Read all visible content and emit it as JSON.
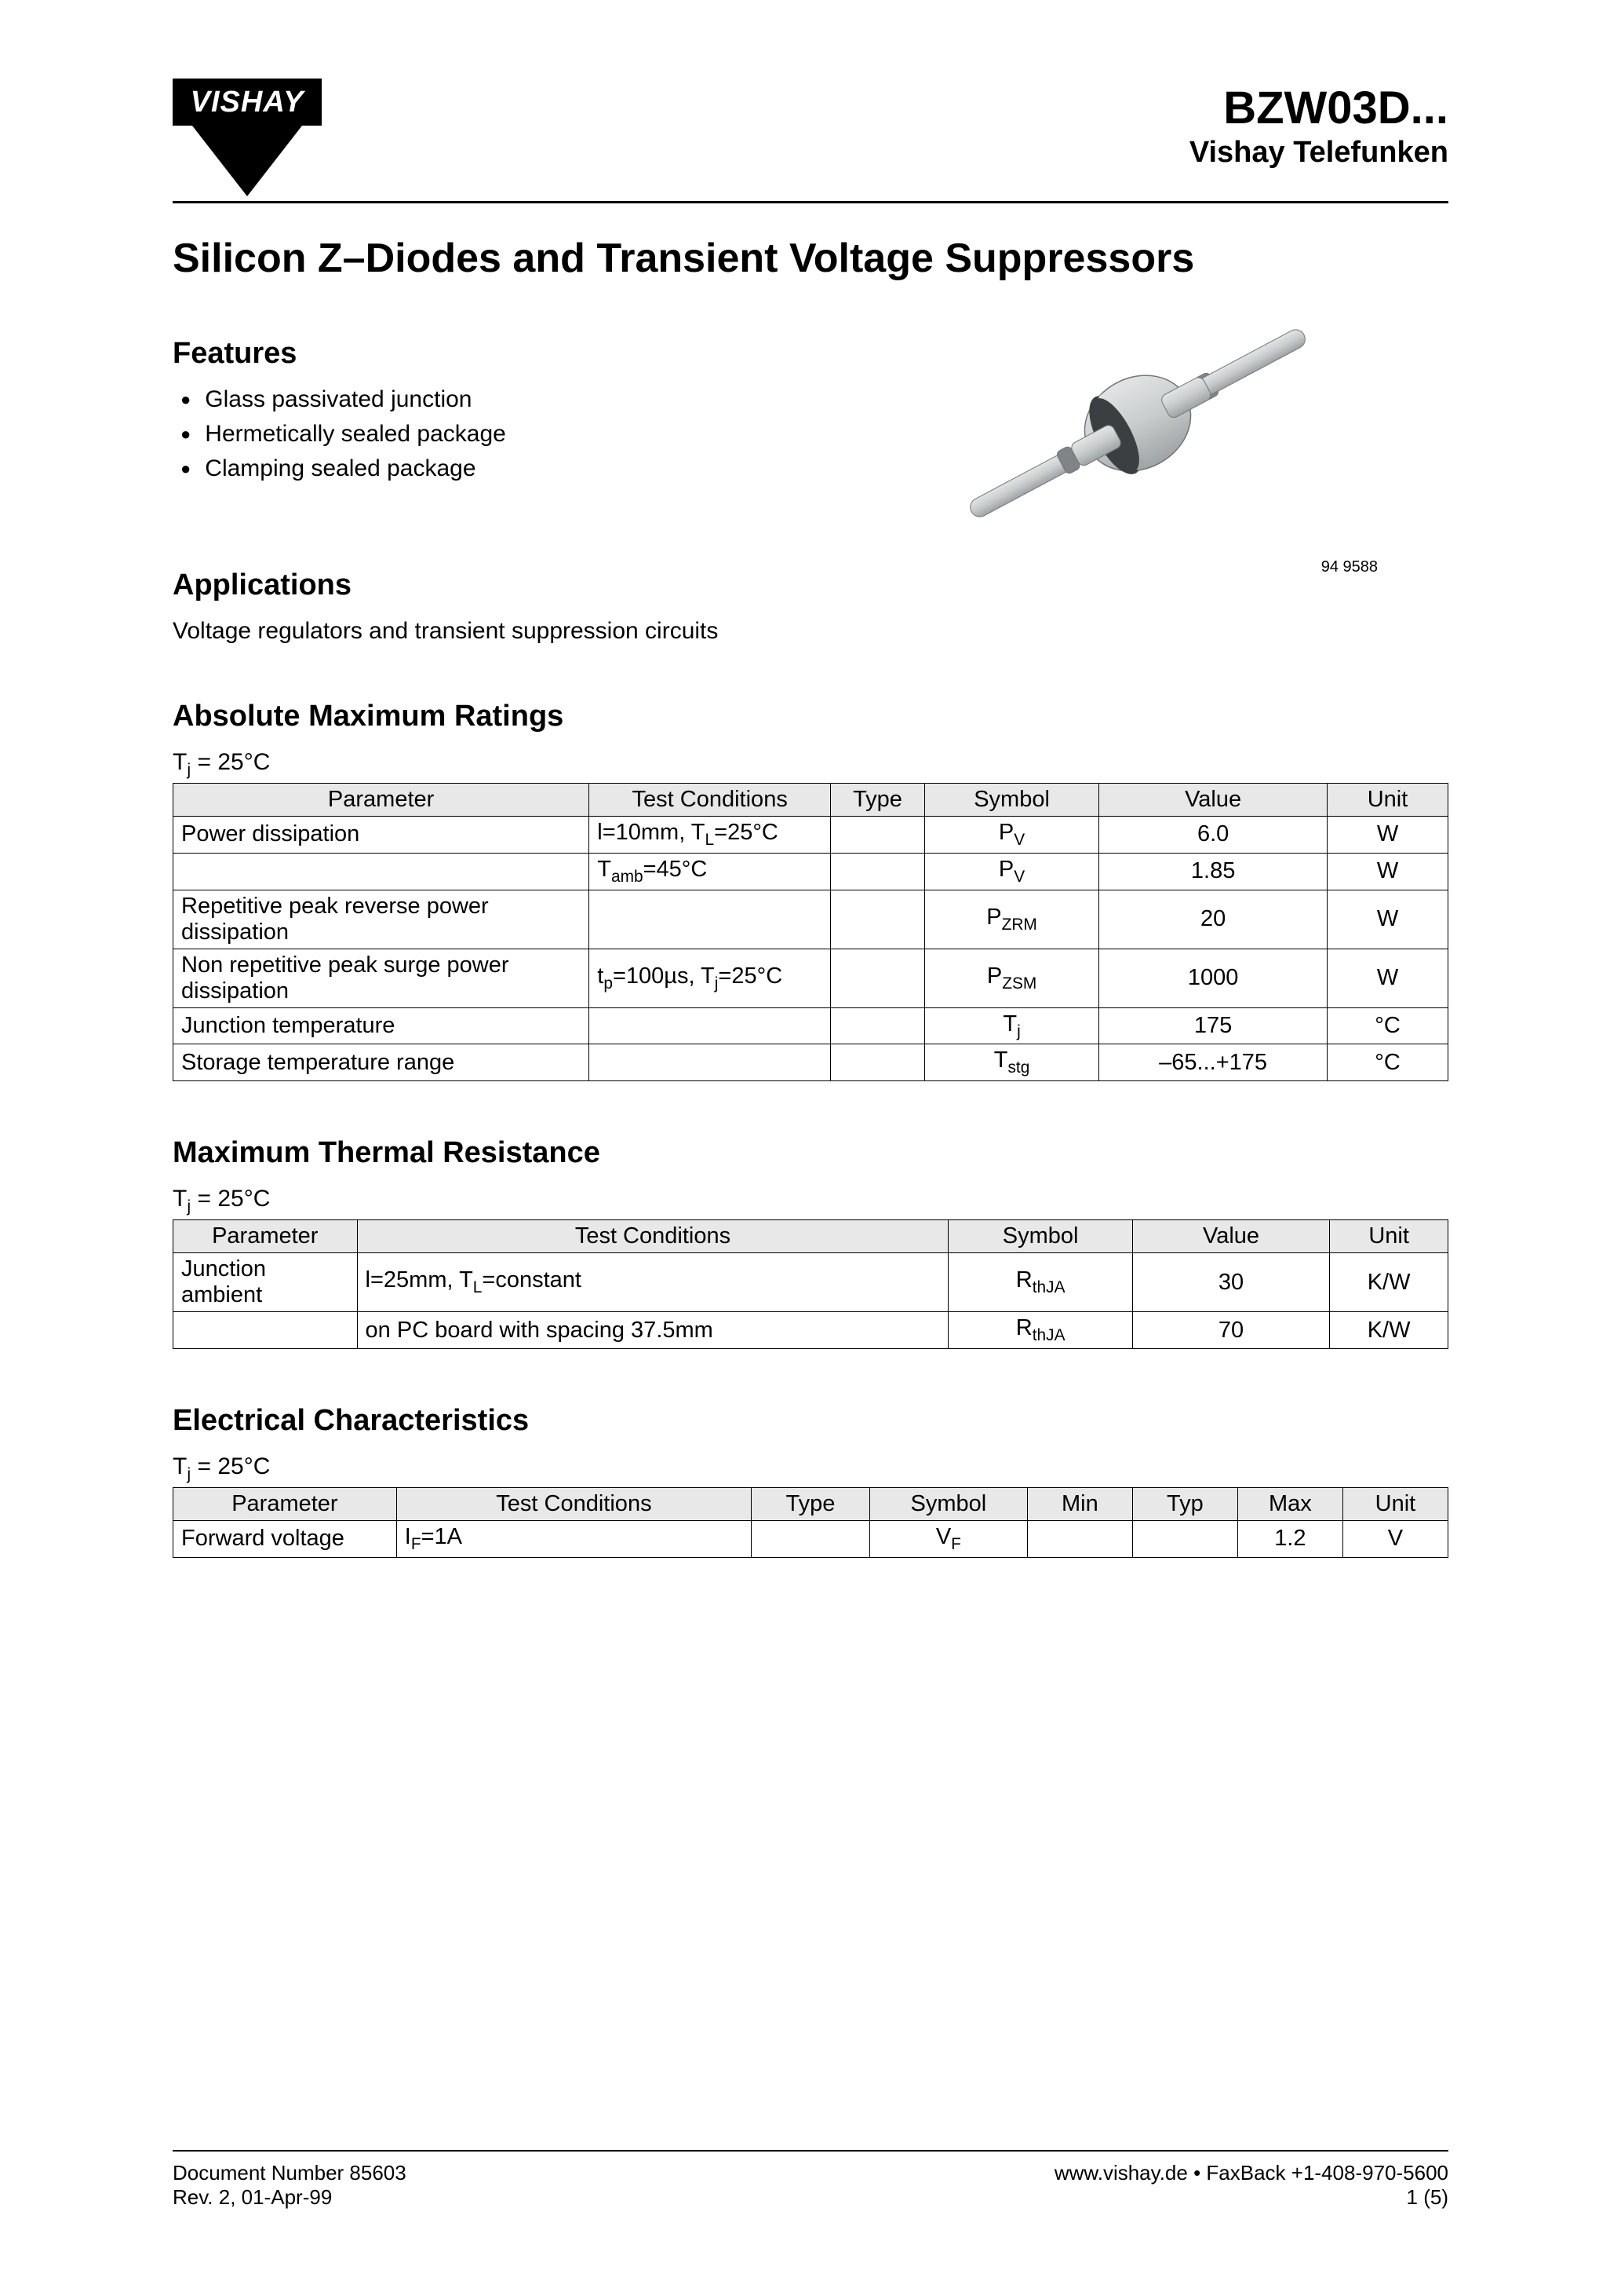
{
  "header": {
    "logo_text": "VISHAY",
    "part_number": "BZW03D...",
    "brand_line": "Vishay Telefunken"
  },
  "main_title": "Silicon Z–Diodes and Transient Voltage Suppressors",
  "features": {
    "heading": "Features",
    "items": [
      "Glass passivated junction",
      "Hermetically sealed package",
      "Clamping sealed package"
    ]
  },
  "applications": {
    "heading": "Applications",
    "text": "Voltage regulators and transient suppression circuits"
  },
  "image": {
    "code": "94 9588",
    "colors": {
      "body_fill": "#c9cccd",
      "body_stroke": "#6f7577",
      "band_fill": "#3b3f42"
    }
  },
  "amr": {
    "heading": "Absolute Maximum Ratings",
    "cond": "Tj = 25°C",
    "columns": [
      "Parameter",
      "Test Conditions",
      "Type",
      "Symbol",
      "Value",
      "Unit"
    ],
    "col_widths": [
      "31%",
      "18%",
      "7%",
      "13%",
      "17%",
      "9%"
    ],
    "header_bg": "#e8e8e8",
    "rows": [
      {
        "param": "Power dissipation",
        "cond_html": "l=10mm, T<span class='sub'>L</span>=25°C",
        "type": "",
        "sym_html": "P<span class='sub'>V</span>",
        "val": "6.0",
        "unit": "W"
      },
      {
        "param": "",
        "cond_html": "T<span class='sub'>amb</span>=45°C",
        "type": "",
        "sym_html": "P<span class='sub'>V</span>",
        "val": "1.85",
        "unit": "W"
      },
      {
        "param": "Repetitive peak reverse power dissipation",
        "cond_html": "",
        "type": "",
        "sym_html": "P<span class='sub'>ZRM</span>",
        "val": "20",
        "unit": "W"
      },
      {
        "param": "Non repetitive peak surge power dissipation",
        "cond_html": "t<span class='sub'>p</span>=100µs, T<span class='sub'>j</span>=25°C",
        "type": "",
        "sym_html": "P<span class='sub'>ZSM</span>",
        "val": "1000",
        "unit": "W"
      },
      {
        "param": "Junction temperature",
        "cond_html": "",
        "type": "",
        "sym_html": "T<span class='sub'>j</span>",
        "val": "175",
        "unit": "°C"
      },
      {
        "param": "Storage temperature range",
        "cond_html": "",
        "type": "",
        "sym_html": "T<span class='sub'>stg</span>",
        "val": "–65...+175",
        "unit": "°C"
      }
    ]
  },
  "mtr": {
    "heading": "Maximum Thermal Resistance",
    "cond": "Tj = 25°C",
    "columns": [
      "Parameter",
      "Test Conditions",
      "Symbol",
      "Value",
      "Unit"
    ],
    "col_widths": [
      "14%",
      "45%",
      "14%",
      "15%",
      "9%"
    ],
    "rows": [
      {
        "param": "Junction ambient",
        "cond_html": "l=25mm, T<span class='sub'>L</span>=constant",
        "sym_html": "R<span class='sub'>thJA</span>",
        "val": "30",
        "unit": "K/W"
      },
      {
        "param": "",
        "cond_html": "on PC board with spacing 37.5mm",
        "sym_html": "R<span class='sub'>thJA</span>",
        "val": "70",
        "unit": "K/W"
      }
    ]
  },
  "ec": {
    "heading": "Electrical Characteristics",
    "cond": "Tj = 25°C",
    "columns": [
      "Parameter",
      "Test Conditions",
      "Type",
      "Symbol",
      "Min",
      "Typ",
      "Max",
      "Unit"
    ],
    "col_widths": [
      "17%",
      "27%",
      "9%",
      "12%",
      "8%",
      "8%",
      "8%",
      "8%"
    ],
    "rows": [
      {
        "param": "Forward voltage",
        "cond_html": "I<span class='sub'>F</span>=1A",
        "type": "",
        "sym_html": "V<span class='sub'>F</span>",
        "min": "",
        "typ": "",
        "max": "1.2",
        "unit": "V"
      }
    ]
  },
  "footer": {
    "doc_num": "Document Number 85603",
    "rev": "Rev. 2, 01-Apr-99",
    "web": "www.vishay.de • FaxBack +1-408-970-5600",
    "page": "1 (5)"
  }
}
